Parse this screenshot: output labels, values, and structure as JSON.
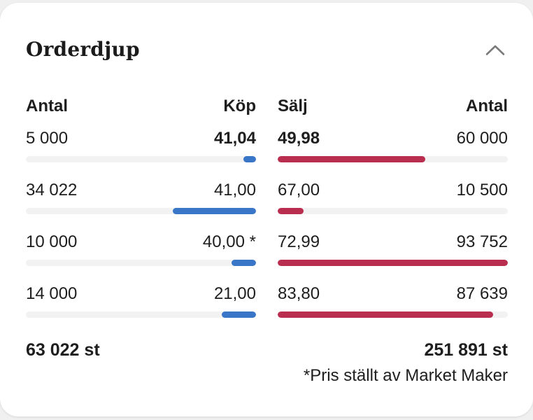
{
  "card": {
    "title": "Orderdjup",
    "collapse_icon": "chevron-up-icon"
  },
  "colors": {
    "buy_bar": "#3a76c8",
    "sell_bar": "#b92d4f",
    "bar_track": "#f2f2f2",
    "text": "#1e1e1e",
    "chevron": "#7b7b7b"
  },
  "table": {
    "headers": {
      "buy_qty": "Antal",
      "buy_price": "Köp",
      "sell_price": "Sälj",
      "sell_qty": "Antal"
    },
    "rows": [
      {
        "best": true,
        "buy_qty": "5 000",
        "buy_qty_value": 5000,
        "buy_price": "41,04",
        "sell_price": "49,98",
        "sell_qty": "60 000",
        "sell_qty_value": 60000
      },
      {
        "best": false,
        "buy_qty": "34 022",
        "buy_qty_value": 34022,
        "buy_price": "41,00",
        "sell_price": "67,00",
        "sell_qty": "10 500",
        "sell_qty_value": 10500
      },
      {
        "best": false,
        "buy_qty": "10 000",
        "buy_qty_value": 10000,
        "buy_price": "40,00 *",
        "sell_price": "72,99",
        "sell_qty": "93 752",
        "sell_qty_value": 93752
      },
      {
        "best": false,
        "buy_qty": "14 000",
        "buy_qty_value": 14000,
        "buy_price": "21,00",
        "sell_price": "83,80",
        "sell_qty": "87 639",
        "sell_qty_value": 87639
      }
    ],
    "totals": {
      "buy_total": "63 022 st",
      "sell_total": "251 891 st"
    },
    "footnote": "*Pris ställt av Market Maker"
  }
}
